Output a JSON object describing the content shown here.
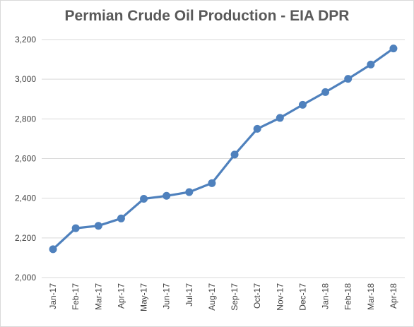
{
  "chart_data": {
    "type": "line",
    "title": "Permian Crude Oil Production - EIA DPR",
    "xlabel": "",
    "ylabel": "",
    "categories": [
      "Jan-17",
      "Feb-17",
      "Mar-17",
      "Apr-17",
      "May-17",
      "Jun-17",
      "Jul-17",
      "Aug-17",
      "Sep-17",
      "Oct-17",
      "Nov-17",
      "Dec-17",
      "Jan-18",
      "Feb-18",
      "Mar-18",
      "Apr-18"
    ],
    "series": [
      {
        "values": [
          2143,
          2249,
          2261,
          2298,
          2397,
          2412,
          2431,
          2476,
          2620,
          2750,
          2805,
          2871,
          2935,
          3002,
          3074,
          3155
        ],
        "color": "#4f81bd"
      }
    ],
    "ylim": [
      2000,
      3200
    ],
    "yticks": [
      2000,
      2200,
      2400,
      2600,
      2800,
      3000,
      3200
    ],
    "ytick_labels": [
      "2,000",
      "2,200",
      "2,400",
      "2,600",
      "2,800",
      "3,000",
      "3,200"
    ],
    "grid": true,
    "legend": "none",
    "colors": {
      "line": "#4f81bd",
      "marker_fill": "#4f81bd",
      "gridline": "#d9d9d9",
      "title": "#595959",
      "tick_text": "#404040"
    }
  }
}
